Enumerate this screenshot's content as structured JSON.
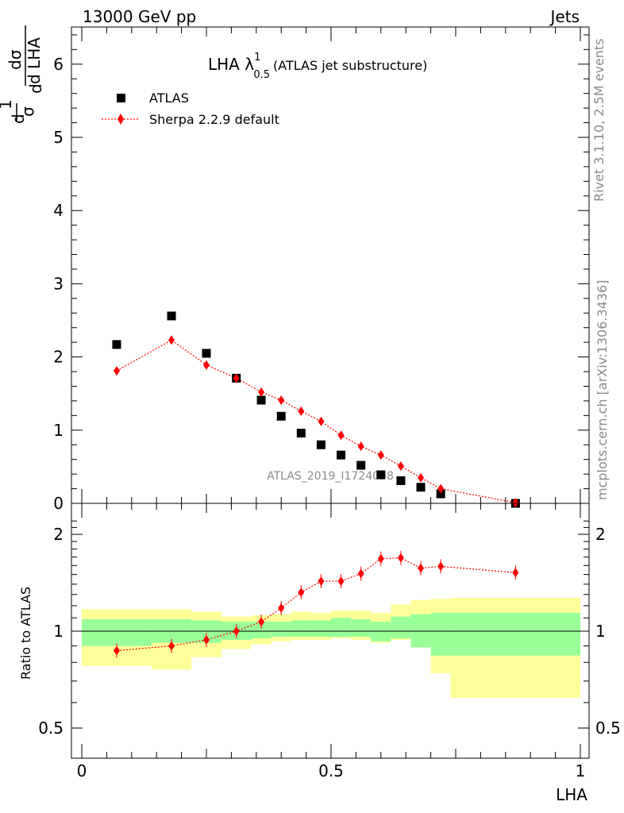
{
  "header": {
    "left": "13000 GeV pp",
    "right": "Jets"
  },
  "side_text": {
    "rivet": "Rivet 3.1.10,  2.5M events",
    "mcplots": "mcplots.cern.ch [arXiv:1306.3436]"
  },
  "watermark": "ATLAS_2019_I1724098",
  "colors": {
    "data": "#000000",
    "mc": "#ff0000",
    "band_inner": "#99ff99",
    "band_outer": "#ffff99"
  },
  "chart_data": [
    {
      "type": "scatter",
      "panel": "main",
      "title": "LHA λ",
      "title_sup": "1",
      "title_sub": "0.5",
      "title_suffix": "(ATLAS jet substructure)",
      "ylabel": "1/σ dσ/d LHA",
      "ylabel_parts": [
        "d",
        "1",
        "σ",
        "d",
        "dσ",
        "d LHA"
      ],
      "xlim": [
        0,
        1
      ],
      "ylim": [
        0,
        6.5
      ],
      "yticks": [
        0,
        1,
        2,
        3,
        4,
        5,
        6
      ],
      "legend_position": "top-left",
      "series": [
        {
          "name": "ATLAS",
          "marker": "square",
          "x": [
            0.07,
            0.18,
            0.25,
            0.31,
            0.36,
            0.4,
            0.44,
            0.48,
            0.52,
            0.56,
            0.6,
            0.64,
            0.68,
            0.72,
            0.87
          ],
          "y": [
            2.17,
            2.56,
            2.05,
            1.71,
            1.41,
            1.19,
            0.96,
            0.8,
            0.66,
            0.52,
            0.39,
            0.31,
            0.22,
            0.13,
            0.0
          ]
        },
        {
          "name": "Sherpa 2.2.9 default",
          "marker": "diamond",
          "line": "dotted",
          "x": [
            0.07,
            0.18,
            0.25,
            0.31,
            0.36,
            0.4,
            0.44,
            0.48,
            0.52,
            0.56,
            0.6,
            0.64,
            0.68,
            0.72,
            0.87
          ],
          "y": [
            1.81,
            2.23,
            1.89,
            1.71,
            1.52,
            1.41,
            1.26,
            1.12,
            0.93,
            0.78,
            0.66,
            0.51,
            0.35,
            0.2,
            0.01
          ]
        }
      ]
    },
    {
      "type": "scatter",
      "panel": "ratio",
      "ylabel": "Ratio to ATLAS",
      "xlabel": "LHA",
      "xlim": [
        0,
        1
      ],
      "xticks": [
        0,
        0.5,
        1
      ],
      "xtick_labels": [
        "0",
        "0.5",
        "1"
      ],
      "ylim": [
        0.4,
        2.3
      ],
      "yticks": [
        0.5,
        1,
        2
      ],
      "ytick_labels": [
        "0.5",
        "1",
        "2"
      ],
      "reference_line": 1,
      "uncertainty_bands": {
        "bin_edges": [
          0.0,
          0.14,
          0.22,
          0.28,
          0.34,
          0.38,
          0.42,
          0.46,
          0.5,
          0.54,
          0.58,
          0.62,
          0.66,
          0.7,
          0.74,
          1.0
        ],
        "inner_low": [
          0.9,
          0.92,
          0.92,
          0.94,
          0.95,
          0.96,
          0.96,
          0.96,
          0.96,
          0.96,
          0.93,
          0.95,
          0.89,
          0.84,
          0.84
        ],
        "inner_high": [
          1.09,
          1.09,
          1.08,
          1.07,
          1.07,
          1.07,
          1.08,
          1.08,
          1.1,
          1.09,
          1.07,
          1.11,
          1.13,
          1.14,
          1.14
        ],
        "outer_low": [
          0.78,
          0.76,
          0.83,
          0.88,
          0.91,
          0.93,
          0.94,
          0.94,
          0.95,
          0.94,
          0.92,
          0.94,
          0.89,
          0.74,
          0.62
        ],
        "outer_high": [
          1.17,
          1.17,
          1.15,
          1.11,
          1.12,
          1.13,
          1.15,
          1.14,
          1.16,
          1.16,
          1.14,
          1.21,
          1.25,
          1.26,
          1.27
        ]
      },
      "series": [
        {
          "name": "Sherpa 2.2.9 default",
          "marker": "diamond",
          "line": "dotted",
          "x": [
            0.07,
            0.18,
            0.25,
            0.31,
            0.36,
            0.4,
            0.44,
            0.48,
            0.52,
            0.56,
            0.6,
            0.64,
            0.68,
            0.72,
            0.87
          ],
          "y": [
            0.87,
            0.9,
            0.94,
            1.0,
            1.07,
            1.18,
            1.32,
            1.43,
            1.43,
            1.51,
            1.68,
            1.69,
            1.57,
            1.59,
            1.52
          ]
        }
      ]
    }
  ]
}
